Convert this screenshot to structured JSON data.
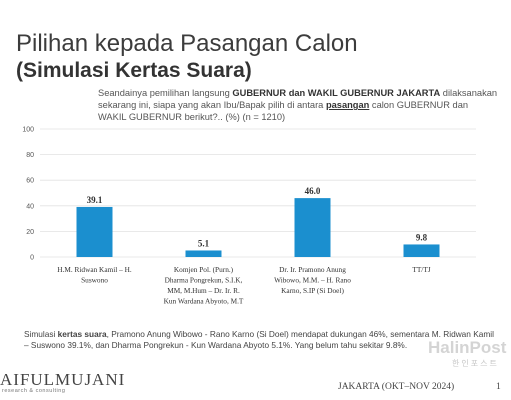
{
  "slide": {
    "title": "Pilihan kepada Pasangan Calon",
    "subtitle": "(Simulasi Kertas Suara)",
    "question": {
      "part1": "Seandainya pemilihan langsung ",
      "bold1": "GUBERNUR dan WAKIL GUBERNUR JAKARTA",
      "part2": " dilaksanakan sekarang ini, siapa yang akan Ibu/Bapak pilih di antara ",
      "bold2": "pasangan",
      "part3": " calon GUBERNUR dan WAKIL GUBERNUR berikut?.. (%) (n = 1210)"
    },
    "note": {
      "part1": "Simulasi ",
      "bold": "kertas suara",
      "part2": ", Pramono Anung Wibowo - Rano Karno (Si Doel) mendapat dukungan 46%, sementara M. Ridwan Kamil – Suswono 39.1%, dan Dharma Pongrekun - Kun Wardana Abyoto 5.1%. Yang belum tahu sekitar 9.8%."
    },
    "logo_text": "AIFULMUJANI",
    "logo_sub": "research & consulting",
    "footer_place": "JAKARTA (OKT–NOV 2024)",
    "page_number": "1",
    "watermark": "HalinPost",
    "watermark_sub": "한인포스트"
  },
  "colors": {
    "bar": "#1b8fcf",
    "grid": "#e2e2e2",
    "axis_text": "#555555",
    "label_text": "#333333"
  },
  "chart_data": {
    "type": "bar",
    "categories": [
      [
        "H.M. Ridwan Kamil – H.",
        "Suswono"
      ],
      [
        "Komjen Pol. (Purn.)",
        "Dharma Pongrekun, S.I.K,",
        "MM, M.Hum – Dr. Ir. R.",
        "Kun Wardana Abyoto, M.T"
      ],
      [
        "Dr. Ir. Pramono Anung",
        "Wibowo, M.M. – H. Rano",
        "Karno, S.IP (Si Doel)"
      ],
      [
        "TT/TJ"
      ]
    ],
    "values": [
      39.1,
      5.1,
      46.0,
      9.8
    ],
    "value_labels": [
      "39.1",
      "5.1",
      "46.0",
      "9.8"
    ],
    "ylim": [
      0,
      100
    ],
    "yticks": [
      "0",
      "20",
      "40",
      "60",
      "80",
      "100"
    ],
    "grid": true,
    "xlabel": "",
    "ylabel": ""
  }
}
